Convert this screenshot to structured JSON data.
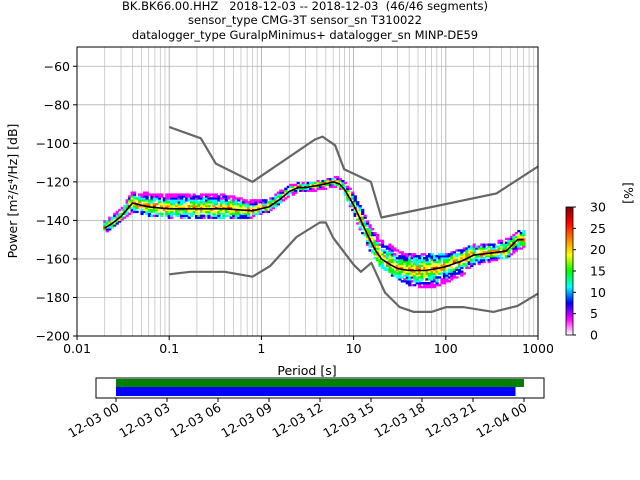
{
  "figure": {
    "title_lines": [
      "BK.BK66.00.HHZ   2018-12-03 -- 2018-12-03  (46/46 segments)",
      "sensor_type CMG-3T sensor_sn T310022",
      "datalogger_type GuralpMinimus+ datalogger_sn MINP-DE59"
    ]
  },
  "chart_data": [
    {
      "type": "heatmap",
      "title": "BK.BK66.00.HHZ   2018-12-03 -- 2018-12-03  (46/46 segments)",
      "xlabel": "Period [s]",
      "ylabel": "Power [m²/s⁴/Hz] [dB]",
      "x_scale": "log",
      "xlim": [
        0.01,
        1000
      ],
      "ylim": [
        -200,
        -50
      ],
      "x_ticks": [
        "0.01",
        "0.1",
        "1",
        "10",
        "100",
        "1000"
      ],
      "y_ticks": [
        "−200",
        "−180",
        "−160",
        "−140",
        "−120",
        "−100",
        "−80",
        "−60"
      ],
      "grid": true,
      "colorbar": {
        "label": "[%]",
        "range": [
          0,
          30
        ],
        "ticks": [
          "0",
          "5",
          "10",
          "15",
          "20",
          "25",
          "30"
        ],
        "colormap": [
          "#ffffff",
          "#ff00ff",
          "#0000ff",
          "#00ffff",
          "#00ff00",
          "#ffff00",
          "#ff8000",
          "#ff0000",
          "#800000"
        ]
      },
      "series": [
        {
          "name": "NHNM",
          "color": "#666666",
          "x": [
            0.1,
            0.22,
            0.32,
            0.8,
            3.8,
            4.6,
            6.3,
            7.9,
            15.4,
            20,
            354.8,
            1000
          ],
          "y": [
            -91.5,
            -97.4,
            -110.5,
            -120,
            -98,
            -96.5,
            -101,
            -113.5,
            -120,
            -138.5,
            -126,
            -112
          ]
        },
        {
          "name": "NLNM",
          "color": "#666666",
          "x": [
            0.1,
            0.17,
            0.4,
            0.8,
            1.24,
            2.4,
            4.3,
            5,
            6,
            10,
            12,
            15.6,
            21.9,
            31.6,
            45,
            70,
            101,
            154,
            328,
            600,
            1000
          ],
          "y": [
            -168,
            -166.7,
            -166.7,
            -169.2,
            -163.7,
            -148.6,
            -141.1,
            -141.1,
            -149,
            -163,
            -166.7,
            -162,
            -177.5,
            -185,
            -187.5,
            -187.5,
            -185,
            -185,
            -187.5,
            -184.4,
            -178
          ]
        },
        {
          "name": "Mode",
          "color": "#000000",
          "x": [
            0.02,
            0.025,
            0.03,
            0.04,
            0.06,
            0.1,
            0.2,
            0.4,
            0.8,
            1.2,
            1.6,
            2,
            2.5,
            3,
            4,
            5,
            6,
            7,
            8,
            10,
            12,
            14,
            17,
            20,
            25,
            30,
            40,
            60,
            80,
            100,
            150,
            200,
            300,
            450,
            600,
            700
          ],
          "y": [
            -144,
            -141,
            -138,
            -131,
            -133,
            -134,
            -134,
            -134,
            -135,
            -133,
            -129,
            -125,
            -123,
            -123,
            -122,
            -121,
            -120,
            -121,
            -124,
            -132,
            -140,
            -147,
            -155,
            -160,
            -163,
            -165,
            -166,
            -166,
            -165,
            -164,
            -161,
            -158,
            -157,
            -156,
            -150,
            -150
          ]
        }
      ],
      "histogram_band": {
        "period": [
          0.02,
          0.025,
          0.03,
          0.04,
          0.06,
          0.1,
          0.2,
          0.4,
          0.8,
          1.2,
          1.6,
          2,
          2.5,
          3,
          4,
          5,
          6,
          7,
          8,
          10,
          12,
          14,
          17,
          20,
          25,
          30,
          40,
          60,
          80,
          100,
          150,
          200,
          300,
          450,
          600,
          700
        ],
        "min": [
          -146,
          -143,
          -140,
          -135,
          -137,
          -138,
          -139,
          -139,
          -138,
          -135,
          -131,
          -127,
          -125,
          -125,
          -124,
          -123,
          -122,
          -123,
          -126,
          -136,
          -146,
          -152,
          -160,
          -164,
          -168,
          -170,
          -173,
          -175,
          -174,
          -172,
          -168,
          -163,
          -161,
          -160,
          -155,
          -155
        ],
        "max": [
          -141,
          -137,
          -134,
          -125,
          -126,
          -127,
          -127,
          -127,
          -130,
          -129,
          -125,
          -122,
          -121,
          -121,
          -120,
          -119,
          -118,
          -118,
          -120,
          -126,
          -132,
          -140,
          -146,
          -150,
          -153,
          -156,
          -158,
          -158,
          -158,
          -158,
          -155,
          -153,
          -152,
          -150,
          -146,
          -146
        ]
      }
    },
    {
      "type": "bar",
      "xlabel": "",
      "x_ticks": [
        "12-03 00",
        "12-03 03",
        "12-03 06",
        "12-03 09",
        "12-03 12",
        "12-03 15",
        "12-03 18",
        "12-03 21",
        "12-04 00"
      ],
      "series": [
        {
          "name": "data available",
          "color": "#008000",
          "start_hour": 0.0,
          "end_hour": 24.0
        },
        {
          "name": "PSD segments",
          "color": "#0000ff",
          "start_hour": 0.0,
          "end_hour": 23.5
        }
      ]
    }
  ]
}
